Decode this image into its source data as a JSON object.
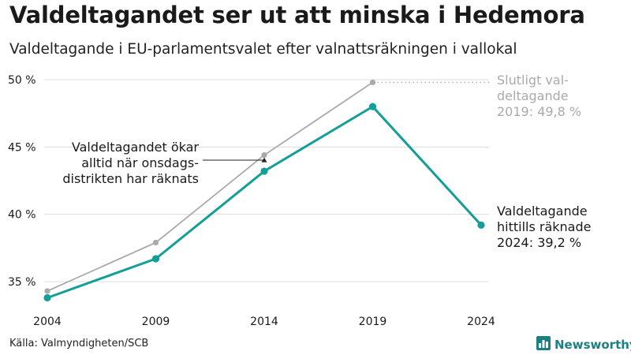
{
  "header": {
    "title": "Valdeltagandet ser ut att minska i Hedemora",
    "subtitle": "Valdeltagande i EU-parlamentsvalet efter valnattsräkningen i vallokal"
  },
  "footer": {
    "source": "Källa: Valmyndigheten/SCB",
    "brand": "Newsworthy",
    "brand_icon": "bar-chart-logo-icon"
  },
  "colors": {
    "main": "#139e98",
    "final": "#aaaaaa",
    "grid": "#dddddd",
    "text": "#1a1a1a",
    "brand": "#1d7f83"
  },
  "chart_data": {
    "type": "line",
    "x": [
      2004,
      2009,
      2014,
      2019,
      2024
    ],
    "ylim": [
      33.5,
      50.5
    ],
    "yticks": [
      35,
      40,
      45,
      50
    ],
    "ytick_labels": [
      "35 %",
      "40 %",
      "45 %",
      "50 %"
    ],
    "xtick_labels": [
      "2004",
      "2009",
      "2014",
      "2019",
      "2024"
    ],
    "grid": true,
    "series": [
      {
        "key": "final",
        "values": [
          34.3,
          37.9,
          44.4,
          49.8,
          null
        ]
      },
      {
        "key": "count",
        "values": [
          33.8,
          36.7,
          43.2,
          48.0,
          39.2
        ]
      }
    ],
    "annotations": {
      "final_2019": [
        "Slutligt val-",
        "deltagande",
        "2019: 49,8 %"
      ],
      "count_2024": [
        "Valdeltagande",
        "hittills räknade",
        "2024: 39,2 %"
      ],
      "wednesday": [
        "Valdeltagandet ökar",
        "alltid när onsdags-",
        "distrikten har räknats"
      ]
    }
  }
}
